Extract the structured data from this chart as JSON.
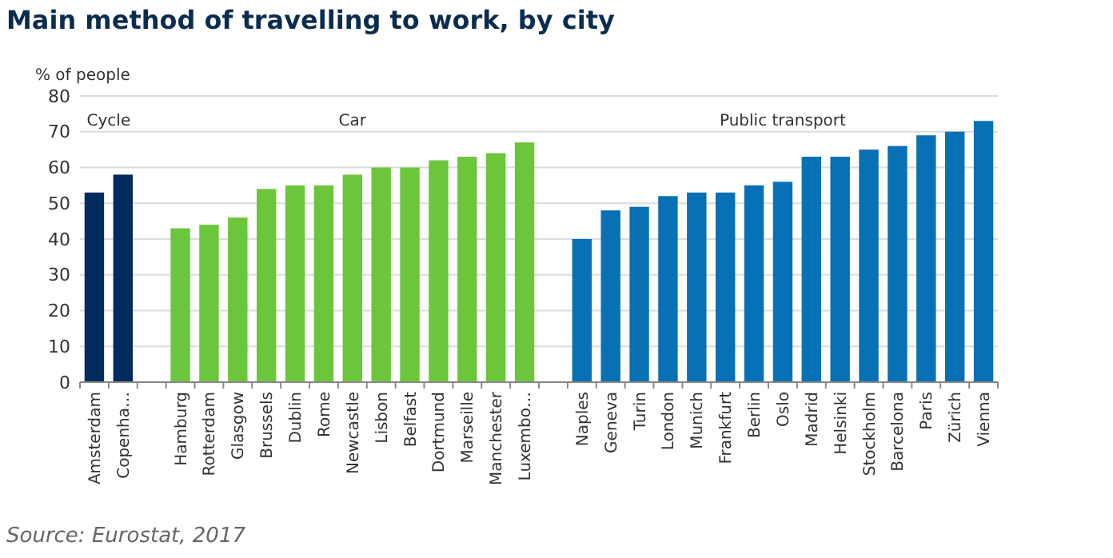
{
  "chart_data": {
    "type": "bar",
    "title": "Main method of travelling to work, by city",
    "ylabel": "% of people",
    "categories": [
      "Amsterdam",
      "Copenha…",
      null,
      "Hamburg",
      "Rotterdam",
      "Glasgow",
      "Brussels",
      "Dublin",
      "Rome",
      "Newcastle",
      "Lisbon",
      "Belfast",
      "Dortmund",
      "Marseille",
      "Manchester",
      "Luxembo…",
      null,
      "Naples",
      "Geneva",
      "Turin",
      "London",
      "Munich",
      "Frankfurt",
      "Berlin",
      "Oslo",
      "Madrid",
      "Helsinki",
      "Stockholm",
      "Barcelona",
      "Paris",
      "Zürich",
      "Vienna"
    ],
    "series": [
      {
        "name": "Cycle",
        "color": "#002b5c",
        "values": [
          53,
          58,
          null,
          null,
          null,
          null,
          null,
          null,
          null,
          null,
          null,
          null,
          null,
          null,
          null,
          null,
          null,
          null,
          null,
          null,
          null,
          null,
          null,
          null,
          null,
          null,
          null,
          null,
          null,
          null,
          null,
          null
        ]
      },
      {
        "name": "Car",
        "color": "#6cc63c",
        "values": [
          null,
          null,
          null,
          43,
          44,
          46,
          54,
          55,
          55,
          58,
          60,
          60,
          62,
          63,
          64,
          67,
          null,
          null,
          null,
          null,
          null,
          null,
          null,
          null,
          null,
          null,
          null,
          null,
          null,
          null,
          null,
          null
        ]
      },
      {
        "name": "Public transport",
        "color": "#0870b4",
        "values": [
          null,
          null,
          null,
          null,
          null,
          null,
          null,
          null,
          null,
          null,
          null,
          null,
          null,
          null,
          null,
          null,
          null,
          40,
          48,
          49,
          52,
          53,
          53,
          55,
          56,
          63,
          63,
          65,
          66,
          69,
          70,
          73
        ]
      }
    ],
    "ylim": [
      0,
      80
    ],
    "yticks": [
      0,
      10,
      20,
      30,
      40,
      50,
      60,
      70,
      80
    ],
    "grid": "y",
    "annotations": [
      "Source: Eurostat, 2017"
    ]
  }
}
